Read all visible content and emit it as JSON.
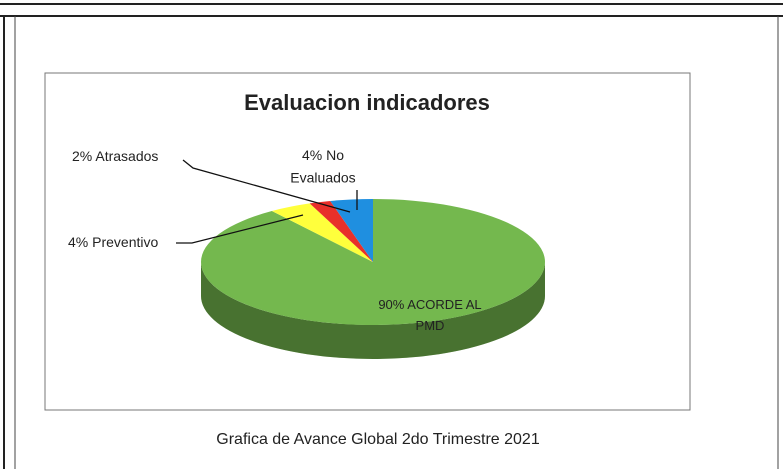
{
  "chart_data": {
    "type": "pie",
    "title": "Evaluacion indicadores",
    "categories": [
      "ACORDE AL PMD",
      "Preventivo",
      "Atrasados",
      "No Evaluados"
    ],
    "values": [
      90,
      4,
      2,
      4
    ],
    "value_labels": [
      "90%",
      "4%",
      "2%",
      "4%"
    ],
    "colors": [
      "#74b84e",
      "#ffff3c",
      "#e8302a",
      "#1f8fe0"
    ],
    "caption": "Grafica de Avance Global 2do Trimestre 2021"
  }
}
